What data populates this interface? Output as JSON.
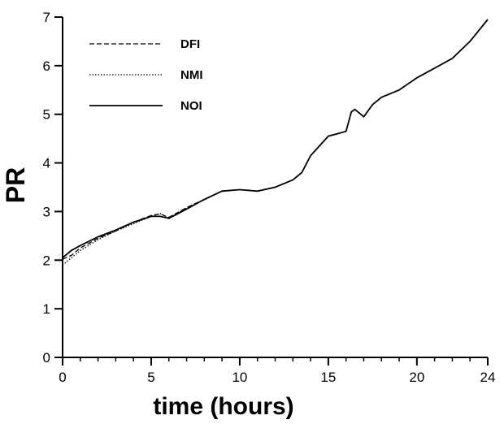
{
  "chart_data": {
    "type": "line",
    "title": "",
    "xlabel": "time (hours)",
    "ylabel": "PR",
    "xlim": [
      0,
      24
    ],
    "ylim": [
      0,
      7
    ],
    "xticks": [
      "0",
      "5",
      "10",
      "15",
      "20",
      "24"
    ],
    "yticks": [
      "0",
      "1",
      "2",
      "3",
      "4",
      "5",
      "6",
      "7"
    ],
    "grid": false,
    "legend_position": "top-left",
    "series": [
      {
        "name": "DFI",
        "style": "dashed",
        "color": "#000000",
        "x": [
          0,
          0.5,
          1,
          2,
          3,
          4,
          5,
          5.5,
          6,
          7,
          8,
          9,
          10,
          11,
          12,
          13,
          13.5,
          14,
          14.5,
          15,
          15.5,
          16,
          16.3,
          16.5,
          17,
          17.5,
          18,
          19,
          20,
          21,
          22,
          23,
          24
        ],
        "y": [
          2.02,
          2.1,
          2.25,
          2.45,
          2.6,
          2.78,
          2.92,
          2.95,
          2.88,
          3.08,
          3.25,
          3.42,
          3.45,
          3.42,
          3.5,
          3.65,
          3.8,
          4.15,
          4.35,
          4.55,
          4.6,
          4.65,
          5.05,
          5.1,
          4.95,
          5.2,
          5.35,
          5.5,
          5.75,
          5.95,
          6.15,
          6.5,
          6.95
        ]
      },
      {
        "name": "NMI",
        "style": "dotted",
        "color": "#000000",
        "x": [
          0,
          0.5,
          1,
          2,
          3,
          4,
          5,
          5.5,
          6,
          7,
          8,
          9,
          10,
          11,
          12,
          13,
          13.5,
          14,
          14.5,
          15,
          15.5,
          16,
          16.3,
          16.5,
          17,
          17.5,
          18,
          19,
          20,
          21,
          22,
          23,
          24
        ],
        "y": [
          1.9,
          2.05,
          2.2,
          2.42,
          2.6,
          2.75,
          2.9,
          2.96,
          2.87,
          3.07,
          3.24,
          3.42,
          3.45,
          3.42,
          3.5,
          3.65,
          3.8,
          4.15,
          4.35,
          4.55,
          4.6,
          4.65,
          5.05,
          5.1,
          4.95,
          5.2,
          5.35,
          5.5,
          5.75,
          5.95,
          6.15,
          6.5,
          6.95
        ]
      },
      {
        "name": "NOI",
        "style": "solid",
        "color": "#000000",
        "x": [
          0,
          0.5,
          1,
          2,
          3,
          4,
          5,
          5.5,
          6,
          7,
          8,
          9,
          10,
          11,
          12,
          13,
          13.5,
          14,
          14.5,
          15,
          15.5,
          16,
          16.3,
          16.5,
          17,
          17.5,
          18,
          19,
          20,
          21,
          22,
          23,
          24
        ],
        "y": [
          2.05,
          2.2,
          2.3,
          2.48,
          2.62,
          2.78,
          2.9,
          2.9,
          2.86,
          3.05,
          3.25,
          3.42,
          3.45,
          3.42,
          3.5,
          3.65,
          3.8,
          4.15,
          4.35,
          4.55,
          4.6,
          4.65,
          5.05,
          5.1,
          4.95,
          5.2,
          5.35,
          5.5,
          5.75,
          5.95,
          6.15,
          6.5,
          6.95
        ]
      }
    ]
  }
}
